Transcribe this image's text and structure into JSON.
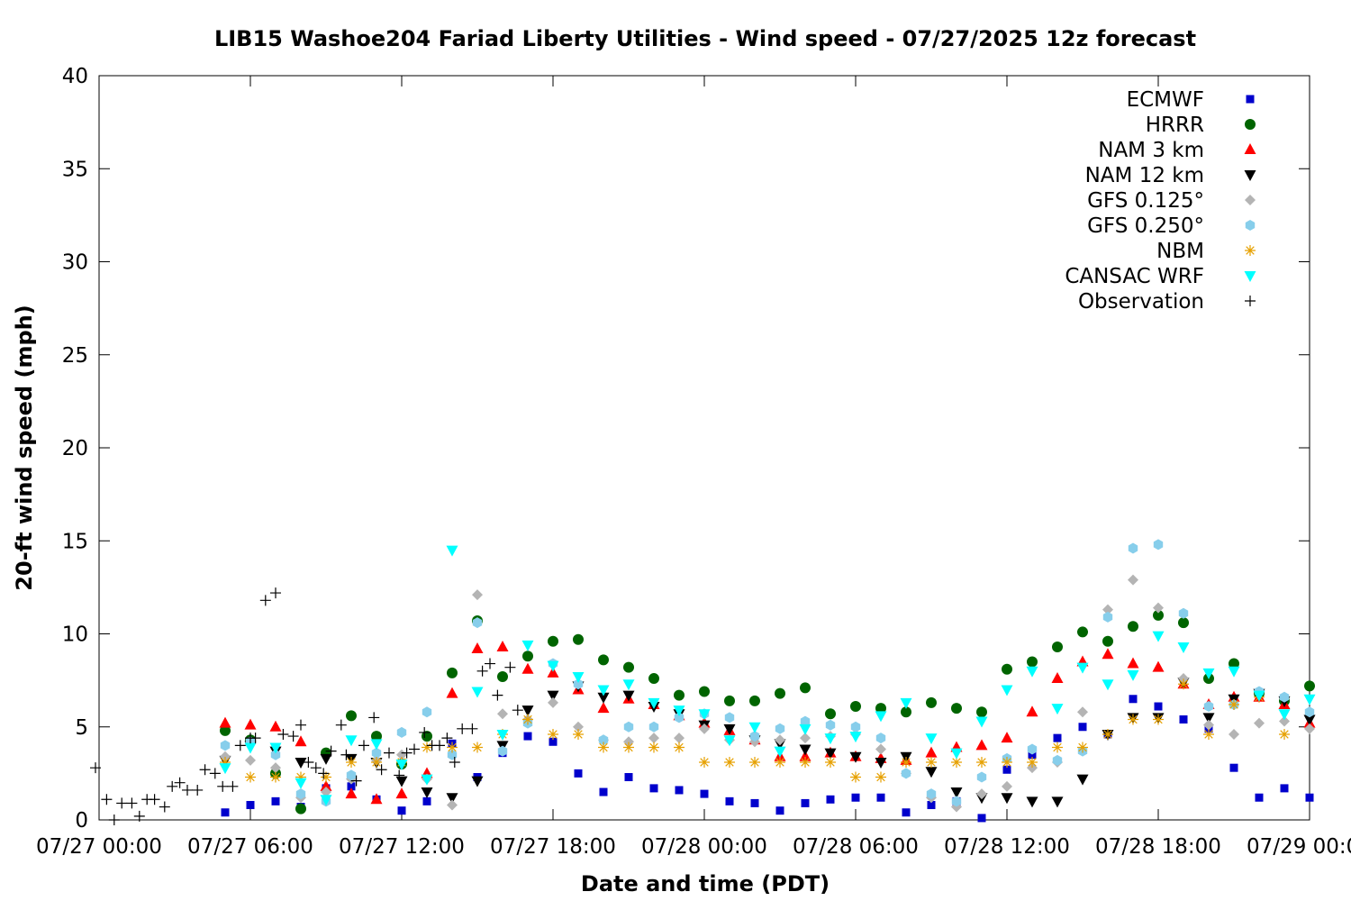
{
  "chart_data": {
    "type": "scatter",
    "title": "LIB15 Washoe204 Fariad Liberty Utilities - Wind speed - 07/27/2025 12z forecast",
    "xlabel": "Date and time (PDT)",
    "ylabel": "20-ft wind speed (mph)",
    "x_unit": "hours since 07/27 00:00 PDT",
    "xlim": [
      0,
      48
    ],
    "ylim": [
      0,
      40
    ],
    "x_ticks": [
      {
        "x": 0,
        "label": "07/27 00:00"
      },
      {
        "x": 6,
        "label": "07/27 06:00"
      },
      {
        "x": 12,
        "label": "07/27 12:00"
      },
      {
        "x": 18,
        "label": "07/27 18:00"
      },
      {
        "x": 24,
        "label": "07/28 00:00"
      },
      {
        "x": 30,
        "label": "07/28 06:00"
      },
      {
        "x": 36,
        "label": "07/28 12:00"
      },
      {
        "x": 42,
        "label": "07/28 18:00"
      },
      {
        "x": 48,
        "label": "07/29 00:00"
      }
    ],
    "y_ticks": [
      0,
      5,
      10,
      15,
      20,
      25,
      30,
      35,
      40
    ],
    "grid": false,
    "legend_position": "top-right",
    "series": [
      {
        "name": "ECMWF",
        "marker": "square",
        "color": "#0000cc",
        "x": [
          5,
          6,
          7,
          8,
          9,
          10,
          11,
          12,
          13,
          14,
          15,
          16,
          17,
          18,
          19,
          20,
          21,
          22,
          23,
          24,
          25,
          26,
          27,
          28,
          29,
          30,
          31,
          32,
          33,
          34,
          35,
          36,
          37,
          38,
          39,
          40,
          41,
          42,
          43,
          44,
          45,
          46,
          47,
          48
        ],
        "y": [
          0.4,
          0.8,
          1.0,
          0.7,
          1.7,
          1.8,
          1.1,
          0.5,
          1.0,
          4.1,
          2.3,
          3.6,
          4.5,
          4.2,
          2.5,
          1.5,
          2.3,
          1.7,
          1.6,
          1.4,
          1.0,
          0.9,
          0.5,
          0.9,
          1.1,
          1.2,
          1.2,
          0.4,
          0.8,
          1.0,
          0.1,
          2.7,
          3.5,
          4.4,
          5.0,
          4.6,
          6.5,
          6.1,
          5.4,
          4.9,
          2.8,
          1.2,
          1.7,
          1.2
        ]
      },
      {
        "name": "HRRR",
        "marker": "circle",
        "color": "#006400",
        "x": [
          5,
          6,
          7,
          8,
          9,
          10,
          11,
          12,
          13,
          14,
          15,
          16,
          17,
          18,
          19,
          20,
          21,
          22,
          23,
          24,
          25,
          26,
          27,
          28,
          29,
          30,
          31,
          32,
          33,
          34,
          35,
          36,
          37,
          38,
          39,
          40,
          41,
          42,
          43,
          44,
          45,
          46,
          47,
          48
        ],
        "y": [
          4.8,
          4.3,
          2.5,
          0.6,
          3.6,
          5.6,
          4.5,
          3.0,
          4.5,
          7.9,
          10.7,
          7.7,
          8.8,
          9.6,
          9.7,
          8.6,
          8.2,
          7.6,
          6.7,
          6.9,
          6.4,
          6.4,
          6.8,
          7.1,
          5.7,
          6.1,
          6.0,
          5.8,
          6.3,
          6.0,
          5.8,
          8.1,
          8.5,
          9.3,
          10.1,
          9.6,
          10.4,
          11.0,
          10.6,
          7.6,
          8.4,
          6.8,
          6.4,
          7.2
        ]
      },
      {
        "name": "NAM 3 km",
        "marker": "triangle-up",
        "color": "#ff0000",
        "x": [
          5,
          6,
          7,
          8,
          9,
          10,
          11,
          12,
          13,
          14,
          15,
          16,
          17,
          18,
          19,
          20,
          21,
          22,
          23,
          24,
          25,
          26,
          27,
          28,
          29,
          30,
          31,
          32,
          33,
          34,
          35,
          36,
          37,
          38,
          39,
          40,
          41,
          42,
          43,
          44,
          45,
          46,
          47,
          48
        ],
        "y": [
          5.2,
          5.1,
          5.0,
          4.2,
          1.8,
          1.4,
          1.1,
          1.4,
          2.5,
          6.8,
          9.2,
          9.3,
          8.1,
          7.9,
          7.0,
          6.0,
          6.5,
          6.2,
          5.6,
          5.2,
          4.8,
          4.3,
          3.4,
          3.4,
          3.6,
          3.4,
          3.3,
          3.2,
          3.6,
          3.9,
          4.0,
          4.4,
          5.8,
          7.6,
          8.5,
          8.9,
          8.4,
          8.2,
          7.3,
          6.2,
          6.6,
          6.6,
          6.2,
          5.2
        ]
      },
      {
        "name": "NAM 12 km",
        "marker": "triangle-down",
        "color": "#000000",
        "x": [
          5,
          6,
          7,
          8,
          9,
          10,
          11,
          12,
          13,
          14,
          15,
          16,
          17,
          18,
          19,
          20,
          21,
          22,
          23,
          24,
          25,
          26,
          27,
          28,
          29,
          30,
          31,
          32,
          33,
          34,
          35,
          36,
          37,
          38,
          39,
          40,
          41,
          42,
          43,
          44,
          45,
          46,
          47,
          48
        ],
        "y": [
          3.2,
          4.0,
          3.7,
          3.1,
          3.3,
          3.3,
          3.1,
          2.1,
          1.5,
          1.2,
          2.1,
          4.0,
          5.9,
          6.7,
          7.2,
          6.6,
          6.7,
          6.1,
          5.7,
          5.1,
          4.9,
          4.3,
          4.1,
          3.8,
          3.6,
          3.4,
          3.1,
          3.4,
          2.6,
          1.5,
          1.2,
          1.2,
          1.0,
          1.0,
          2.2,
          4.6,
          5.5,
          5.5,
          7.4,
          5.5,
          6.5,
          6.8,
          6.4,
          5.4
        ]
      },
      {
        "name": "GFS 0.125°",
        "marker": "diamond",
        "color": "#b4b4b4",
        "x": [
          5,
          6,
          7,
          8,
          9,
          10,
          11,
          12,
          13,
          14,
          15,
          16,
          17,
          18,
          19,
          20,
          21,
          22,
          23,
          24,
          25,
          26,
          27,
          28,
          29,
          30,
          31,
          32,
          33,
          34,
          35,
          36,
          37,
          38,
          39,
          40,
          41,
          42,
          43,
          44,
          45,
          46,
          47,
          48
        ],
        "y": [
          3.4,
          3.2,
          2.8,
          1.2,
          1.5,
          2.2,
          3.2,
          3.5,
          2.2,
          0.8,
          12.1,
          5.7,
          5.4,
          6.3,
          5.0,
          4.3,
          4.2,
          4.4,
          4.4,
          4.9,
          4.3,
          4.2,
          4.3,
          4.4,
          4.5,
          4.6,
          3.8,
          2.5,
          1.2,
          0.7,
          1.4,
          1.8,
          2.8,
          3.1,
          5.8,
          11.3,
          12.9,
          11.4,
          7.6,
          5.1,
          4.6,
          5.2,
          5.3,
          4.9
        ]
      },
      {
        "name": "GFS 0.250°",
        "marker": "hexagon",
        "color": "#87ceeb",
        "x": [
          5,
          6,
          7,
          8,
          9,
          10,
          11,
          12,
          13,
          14,
          15,
          16,
          17,
          18,
          19,
          20,
          21,
          22,
          23,
          24,
          25,
          26,
          27,
          28,
          29,
          30,
          31,
          32,
          33,
          34,
          35,
          36,
          37,
          38,
          39,
          40,
          41,
          42,
          43,
          44,
          45,
          46,
          47,
          48
        ],
        "y": [
          4.0,
          4.2,
          3.5,
          1.4,
          1.0,
          2.4,
          3.6,
          4.7,
          5.8,
          3.5,
          10.6,
          3.7,
          5.2,
          8.4,
          7.3,
          4.3,
          5.0,
          5.0,
          5.5,
          5.7,
          5.5,
          4.5,
          4.9,
          5.3,
          5.1,
          5.0,
          4.4,
          2.5,
          1.4,
          1.0,
          2.3,
          3.3,
          3.8,
          3.2,
          3.7,
          10.9,
          14.6,
          14.8,
          11.1,
          6.1,
          6.2,
          6.9,
          6.6,
          5.8
        ]
      },
      {
        "name": "NBM",
        "marker": "asterisk",
        "color": "#e6a000",
        "x": [
          5,
          6,
          7,
          8,
          9,
          10,
          11,
          12,
          13,
          14,
          15,
          16,
          17,
          18,
          19,
          20,
          21,
          22,
          23,
          24,
          25,
          26,
          27,
          28,
          29,
          30,
          31,
          32,
          33,
          34,
          35,
          36,
          37,
          38,
          39,
          40,
          41,
          42,
          43,
          44,
          45,
          46,
          47
        ],
        "y": [
          3.1,
          2.3,
          2.3,
          2.3,
          2.3,
          3.1,
          3.1,
          3.1,
          3.9,
          3.9,
          3.9,
          4.6,
          5.4,
          4.6,
          4.6,
          3.9,
          3.9,
          3.9,
          3.9,
          3.1,
          3.1,
          3.1,
          3.1,
          3.1,
          3.1,
          2.3,
          2.3,
          3.1,
          3.1,
          3.1,
          3.1,
          3.1,
          3.1,
          3.9,
          3.9,
          4.6,
          5.4,
          5.4,
          7.3,
          4.6,
          6.2,
          6.6,
          4.6
        ]
      },
      {
        "name": "CANSAC WRF",
        "marker": "triangle-down",
        "color": "#00ffff",
        "x": [
          5,
          6,
          7,
          8,
          9,
          10,
          11,
          12,
          13,
          14,
          15,
          16,
          17,
          18,
          19,
          20,
          21,
          22,
          23,
          24,
          25,
          26,
          27,
          28,
          29,
          30,
          31,
          32,
          33,
          34,
          35,
          36,
          37,
          38,
          39,
          40,
          41,
          42,
          43,
          44,
          45,
          46,
          47,
          48
        ],
        "y": [
          2.8,
          3.9,
          3.9,
          2.0,
          1.1,
          4.3,
          4.1,
          3.0,
          2.2,
          14.5,
          6.9,
          4.6,
          9.4,
          8.3,
          7.7,
          7.0,
          7.3,
          6.3,
          5.9,
          5.7,
          4.3,
          5.0,
          3.7,
          4.9,
          4.4,
          4.5,
          5.6,
          6.3,
          4.4,
          3.6,
          5.3,
          7.0,
          8.0,
          6.0,
          8.2,
          7.3,
          7.8,
          9.9,
          9.3,
          7.9,
          8.0,
          6.7,
          5.7,
          6.5
        ]
      },
      {
        "name": "Observation",
        "marker": "plus",
        "color": "#000000",
        "x": [
          -0.2,
          0.3,
          0.6,
          0.9,
          1.3,
          1.6,
          1.9,
          2.2,
          2.6,
          2.9,
          3.2,
          3.5,
          3.9,
          4.2,
          4.6,
          4.9,
          5.3,
          5.6,
          6.0,
          6.2,
          6.6,
          7.0,
          7.3,
          7.7,
          8.0,
          8.3,
          8.6,
          8.9,
          9.2,
          9.6,
          9.8,
          10.2,
          10.5,
          10.9,
          11.2,
          11.5,
          11.9,
          12.2,
          12.5,
          12.9,
          13.2,
          13.5,
          13.8,
          14.1,
          14.4,
          14.8,
          15.2,
          15.5,
          15.8,
          16.3,
          16.6
        ],
        "y": [
          2.8,
          1.1,
          0.0,
          0.9,
          0.9,
          0.2,
          1.1,
          1.1,
          0.7,
          1.8,
          2.0,
          1.6,
          1.6,
          2.7,
          2.5,
          1.8,
          1.8,
          4.0,
          4.4,
          4.4,
          11.8,
          12.2,
          4.6,
          4.5,
          5.1,
          3.1,
          2.8,
          2.5,
          3.7,
          5.1,
          3.5,
          2.1,
          4.0,
          5.5,
          2.7,
          3.6,
          2.4,
          3.6,
          3.8,
          4.7,
          4.0,
          4.0,
          4.4,
          3.1,
          4.9,
          4.9,
          8.0,
          8.4,
          6.7,
          8.2,
          5.9
        ]
      }
    ]
  }
}
